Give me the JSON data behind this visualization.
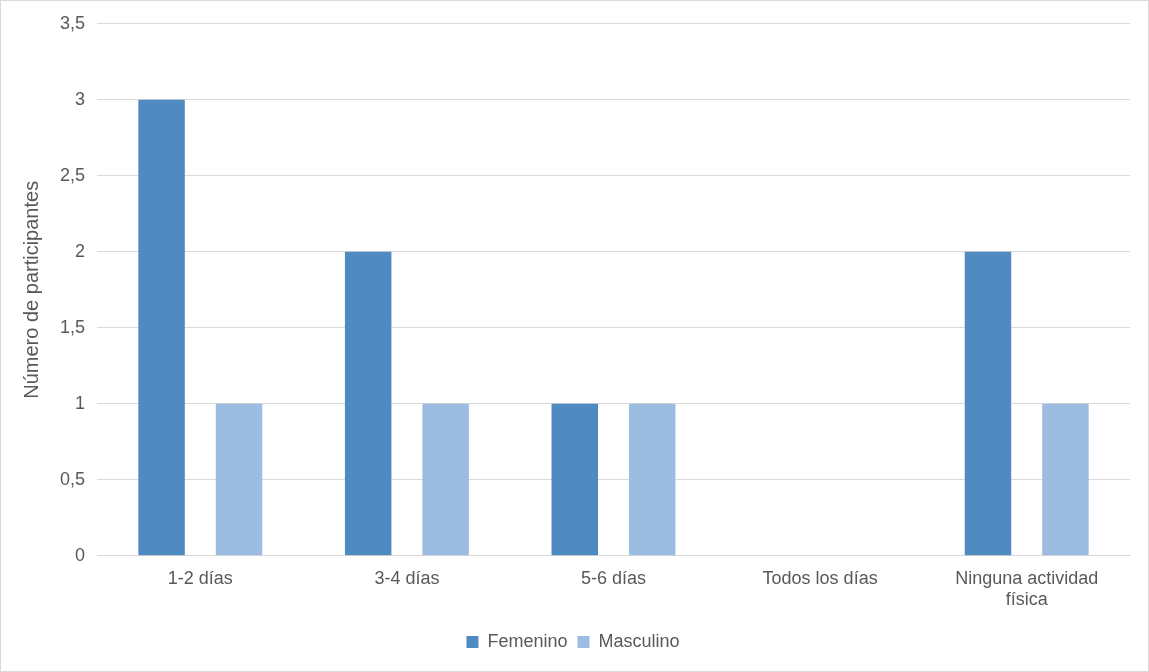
{
  "chart_data": {
    "type": "bar",
    "ylabel": "Número de participantes",
    "categories": [
      "1-2 días",
      "3-4 días",
      "5-6 días",
      "Todos los días",
      "Ninguna actividad física"
    ],
    "series": [
      {
        "name": "Femenino",
        "color": "#4f8bc0",
        "values": [
          3,
          2,
          1,
          0,
          2
        ]
      },
      {
        "name": "Masculino",
        "color": "#9dbce2",
        "values": [
          1,
          1,
          1,
          0,
          1
        ]
      }
    ],
    "ylim": [
      0,
      3.5
    ],
    "yticks": [
      0,
      {
        "value": 0.5,
        "label": "0,5"
      },
      1,
      {
        "value": 1.5,
        "label": "1,5"
      },
      2,
      {
        "value": 2.5,
        "label": "2,5"
      },
      3,
      {
        "value": 3.5,
        "label": "3,5"
      }
    ],
    "grid": "y",
    "legend": "bottom"
  }
}
